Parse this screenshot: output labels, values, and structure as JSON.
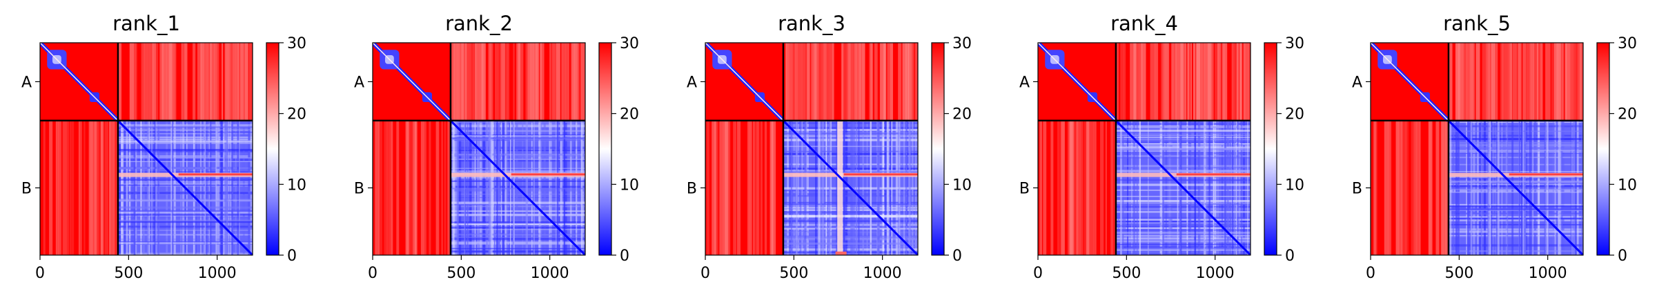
{
  "chart_data": [
    {
      "type": "heatmap",
      "title": "rank_1",
      "x_ticks": [
        0,
        500,
        1000
      ],
      "xlim": [
        0,
        1200
      ],
      "y_ticks": [
        "A",
        "B"
      ],
      "chain_boundary": 440,
      "colorbar": {
        "min": 0,
        "max": 30,
        "ticks": [
          0,
          10,
          20,
          30
        ],
        "colors": [
          "#0000ff",
          "#ffffff",
          "#ff0000"
        ]
      },
      "legend": "none",
      "grid": false
    },
    {
      "type": "heatmap",
      "title": "rank_2",
      "x_ticks": [
        0,
        500,
        1000
      ],
      "xlim": [
        0,
        1200
      ],
      "y_ticks": [
        "A",
        "B"
      ],
      "chain_boundary": 440,
      "colorbar": {
        "min": 0,
        "max": 30,
        "ticks": [
          0,
          10,
          20,
          30
        ],
        "colors": [
          "#0000ff",
          "#ffffff",
          "#ff0000"
        ]
      },
      "legend": "none",
      "grid": false
    },
    {
      "type": "heatmap",
      "title": "rank_3",
      "x_ticks": [
        0,
        500,
        1000
      ],
      "xlim": [
        0,
        1200
      ],
      "y_ticks": [
        "A",
        "B"
      ],
      "chain_boundary": 440,
      "colorbar": {
        "min": 0,
        "max": 30,
        "ticks": [
          0,
          10,
          20,
          30
        ],
        "colors": [
          "#0000ff",
          "#ffffff",
          "#ff0000"
        ]
      },
      "legend": "none",
      "grid": false
    },
    {
      "type": "heatmap",
      "title": "rank_4",
      "x_ticks": [
        0,
        500,
        1000
      ],
      "xlim": [
        0,
        1200
      ],
      "y_ticks": [
        "A",
        "B"
      ],
      "chain_boundary": 440,
      "colorbar": {
        "min": 0,
        "max": 30,
        "ticks": [
          0,
          10,
          20,
          30
        ],
        "colors": [
          "#0000ff",
          "#ffffff",
          "#ff0000"
        ]
      },
      "legend": "none",
      "grid": false
    },
    {
      "type": "heatmap",
      "title": "rank_5",
      "x_ticks": [
        0,
        500,
        1000
      ],
      "xlim": [
        0,
        1200
      ],
      "y_ticks": [
        "A",
        "B"
      ],
      "chain_boundary": 440,
      "colorbar": {
        "min": 0,
        "max": 30,
        "ticks": [
          0,
          10,
          20,
          30
        ],
        "colors": [
          "#0000ff",
          "#ffffff",
          "#ff0000"
        ]
      },
      "legend": "none",
      "grid": false
    }
  ]
}
